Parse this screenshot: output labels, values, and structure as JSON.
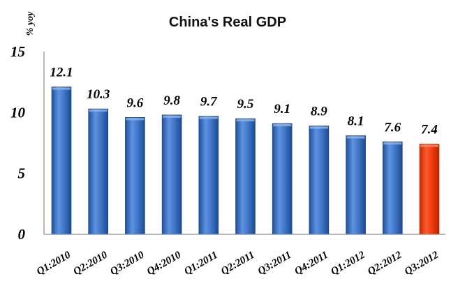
{
  "chart_data": {
    "type": "bar",
    "title": "China's Real GDP",
    "xlabel": "",
    "ylabel": "% yoy",
    "ylim": [
      0,
      15
    ],
    "yticks": [
      "0",
      "5",
      "10",
      "15"
    ],
    "grid": false,
    "legend": "none",
    "categories": [
      "Q1:2010",
      "Q2:2010",
      "Q3:2010",
      "Q4:2010",
      "Q1:2011",
      "Q2:2011",
      "Q3:2011",
      "Q4:2011",
      "Q1:2012",
      "Q2:2012",
      "Q3:2012"
    ],
    "values": [
      12.1,
      10.3,
      9.6,
      9.8,
      9.7,
      9.5,
      9.1,
      8.9,
      8.1,
      7.6,
      7.4
    ],
    "value_labels": [
      "12.1",
      "10.3",
      "9.6",
      "9.8",
      "9.7",
      "9.5",
      "9.1",
      "8.9",
      "8.1",
      "7.6",
      "7.4"
    ],
    "colors": {
      "bar": "#3d72c4",
      "bar_highlight": "#f03a10",
      "axis": "#8a8a8a"
    },
    "highlight_index": 10
  }
}
